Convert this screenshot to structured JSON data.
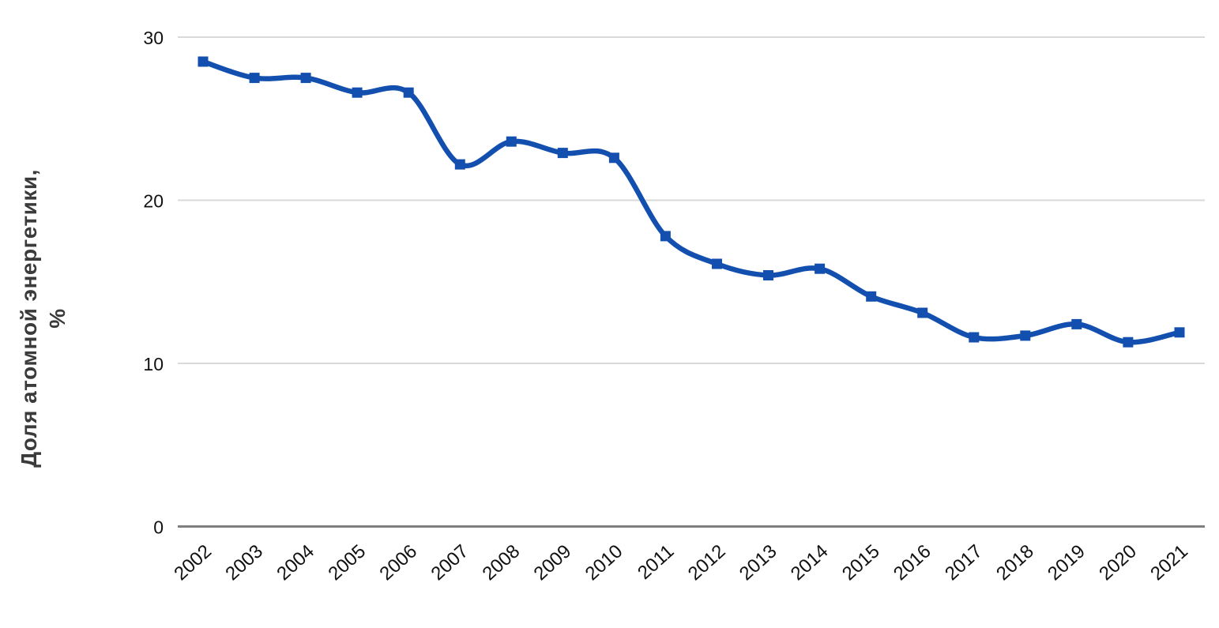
{
  "chart_data": {
    "type": "line",
    "title": "",
    "ylabel": "Доля атомной энергетики, %",
    "ylabel_lines": [
      "Доля атомной энергетики,",
      "%"
    ],
    "xlabel": "",
    "categories": [
      "2002",
      "2003",
      "2004",
      "2005",
      "2006",
      "2007",
      "2008",
      "2009",
      "2010",
      "2011",
      "2012",
      "2013",
      "2014",
      "2015",
      "2016",
      "2017",
      "2018",
      "2019",
      "2020",
      "2021"
    ],
    "series": [
      {
        "name": "Доля атомной энергетики, %",
        "values": [
          28.5,
          27.5,
          27.5,
          26.6,
          26.6,
          22.2,
          23.6,
          22.9,
          22.6,
          17.8,
          16.1,
          15.4,
          15.8,
          14.1,
          13.1,
          11.6,
          11.7,
          12.4,
          11.3,
          11.9
        ]
      }
    ],
    "ylim": [
      0,
      30
    ],
    "yticks": [
      0,
      10,
      20,
      30
    ],
    "grid": "horizontal gridlines at 10, 20, 30; darker baseline at 0",
    "legend": "none",
    "marker": "square",
    "line_style": "smooth",
    "colors": {
      "line": "#134fae",
      "marker": "#134fae",
      "gridline": "#d9d9d9",
      "axis_line": "#7f7f7f",
      "tick_label": "#111111",
      "ylabel": "#3b3b3b",
      "background": "#ffffff"
    }
  }
}
